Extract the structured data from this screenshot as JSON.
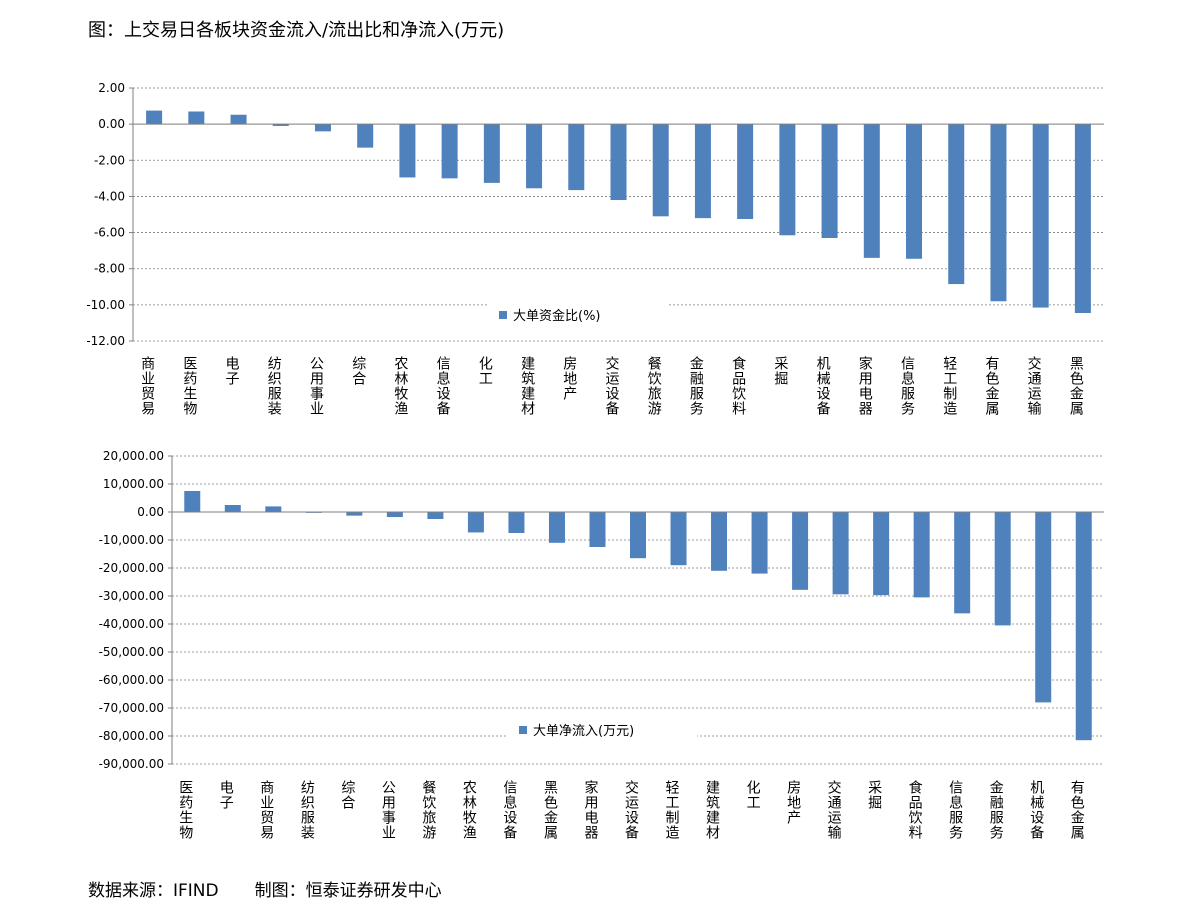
{
  "figure_title": "图：上交易日各板块资金流入/流出比和净流入(万元)",
  "source": {
    "data_source": "数据来源：IFIND",
    "made_by": "制图：恒泰证券研发中心"
  },
  "colors": {
    "bar": "#4f81bd",
    "grid": "#7f7f7f",
    "axis": "#7f7f7f"
  },
  "chart_data": [
    {
      "type": "bar",
      "legend": "大单资金比(%)",
      "legend_position": "bottom-center",
      "grid": true,
      "ylim": [
        -12,
        2
      ],
      "yticks": [
        "2.00",
        "0.00",
        "-2.00",
        "-4.00",
        "-6.00",
        "-8.00",
        "-10.00",
        "-12.00"
      ],
      "categories": [
        "商业贸易",
        "医药生物",
        "电子",
        "纺织服装",
        "公用事业",
        "综合",
        "农林牧渔",
        "信息设备",
        "化工",
        "建筑建材",
        "房地产",
        "交运设备",
        "餐饮旅游",
        "金融服务",
        "食品饮料",
        "采掘",
        "机械设备",
        "家用电器",
        "信息服务",
        "轻工制造",
        "有色金属",
        "交通运输",
        "黑色金属"
      ],
      "values": [
        0.75,
        0.7,
        0.52,
        -0.1,
        -0.4,
        -1.3,
        -2.95,
        -3.0,
        -3.25,
        -3.55,
        -3.65,
        -4.2,
        -5.1,
        -5.2,
        -5.25,
        -6.15,
        -6.3,
        -7.4,
        -7.45,
        -8.85,
        -9.8,
        -10.15,
        -10.45
      ]
    },
    {
      "type": "bar",
      "legend": "大单净流入(万元)",
      "legend_position": "bottom-center",
      "grid": true,
      "ylim": [
        -90000,
        20000
      ],
      "yticks": [
        "20,000.00",
        "10,000.00",
        "0.00",
        "-10,000.00",
        "-20,000.00",
        "-30,000.00",
        "-40,000.00",
        "-50,000.00",
        "-60,000.00",
        "-70,000.00",
        "-80,000.00",
        "-90,000.00"
      ],
      "categories": [
        "医药生物",
        "电子",
        "商业贸易",
        "纺织服装",
        "综合",
        "公用事业",
        "餐饮旅游",
        "农林牧渔",
        "信息设备",
        "黑色金属",
        "家用电器",
        "交运设备",
        "轻工制造",
        "建筑建材",
        "化工",
        "房地产",
        "交通运输",
        "采掘",
        "食品饮料",
        "信息服务",
        "金融服务",
        "机械设备",
        "有色金属"
      ],
      "values": [
        7500,
        2500,
        2000,
        -300,
        -1300,
        -1800,
        -2500,
        -7300,
        -7500,
        -11000,
        -12500,
        -16500,
        -19000,
        -21000,
        -22000,
        -27800,
        -29400,
        -29700,
        -30500,
        -36200,
        -40500,
        -68000,
        -81500
      ]
    }
  ]
}
